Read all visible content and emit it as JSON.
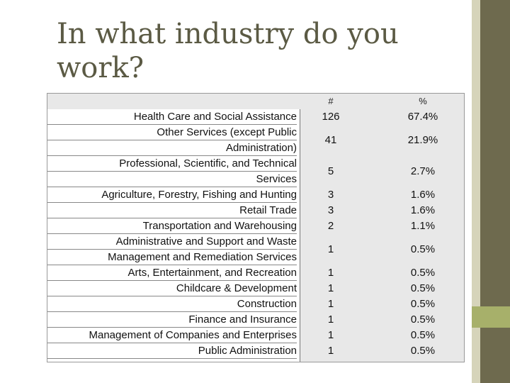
{
  "title": "In what industry do you work?",
  "table": {
    "headers": {
      "count": "#",
      "percent": "%"
    },
    "label_lines": [
      "Health Care and Social Assistance",
      "Other Services (except Public",
      "Administration)",
      "Professional, Scientific, and Technical",
      "Services",
      "Agriculture, Forestry, Fishing and Hunting",
      "Retail Trade",
      "Transportation and Warehousing",
      "Administrative and Support and Waste",
      "Management and Remediation Services",
      "Arts, Entertainment, and Recreation",
      "Childcare & Development",
      "Construction",
      "Finance and Insurance",
      "Management of Companies and Enterprises",
      "Public Administration"
    ],
    "rows": [
      {
        "count": "126",
        "percent": "67.4%"
      },
      {
        "count": "41",
        "percent": "21.9%"
      },
      {
        "count": "5",
        "percent": "2.7%"
      },
      {
        "count": "3",
        "percent": "1.6%"
      },
      {
        "count": "3",
        "percent": "1.6%"
      },
      {
        "count": "2",
        "percent": "1.1%"
      },
      {
        "count": "1",
        "percent": "0.5%"
      },
      {
        "count": "1",
        "percent": "0.5%"
      },
      {
        "count": "1",
        "percent": "0.5%"
      },
      {
        "count": "1",
        "percent": "0.5%"
      },
      {
        "count": "1",
        "percent": "0.5%"
      },
      {
        "count": "1",
        "percent": "0.5%"
      },
      {
        "count": "1",
        "percent": "0.5%"
      }
    ]
  }
}
